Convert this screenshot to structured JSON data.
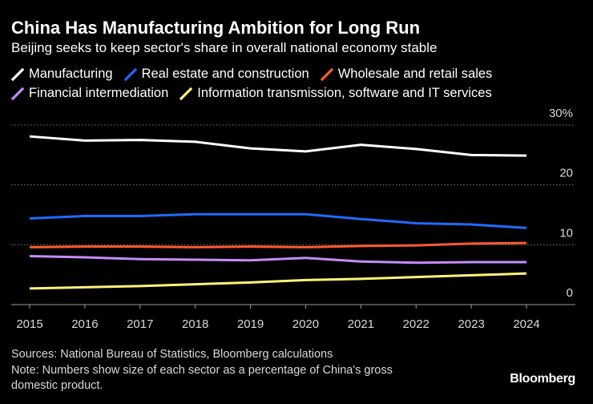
{
  "title": "China Has Manufacturing Ambition for Long Run",
  "subtitle": "Beijing seeks to keep sector's share in overall national economy stable",
  "sources": "Sources: National Bureau of Statistics, Bloomberg calculations",
  "note_line1": "Note: Numbers show size of each sector as a percentage of China's gross",
  "note_line2": "domestic product.",
  "brand": "Bloomberg",
  "chart_data": {
    "type": "line",
    "title": "China Has Manufacturing Ambition for Long Run",
    "subtitle": "Beijing seeks to keep sector's share in overall national economy stable",
    "xlabel": "",
    "ylabel": "",
    "x": [
      "2015",
      "2016",
      "2017",
      "2018",
      "2019",
      "2020",
      "2021",
      "2022",
      "2023",
      "2024"
    ],
    "ylim": [
      0,
      30
    ],
    "yticks": [
      0,
      10,
      20,
      30
    ],
    "ytick_labels": [
      "0",
      "10",
      "20",
      "30%"
    ],
    "grid": true,
    "legend_position": "top-left",
    "series": [
      {
        "name": "Manufacturing",
        "color": "#ffffff",
        "values": [
          28.1,
          27.4,
          27.5,
          27.2,
          26.1,
          25.6,
          26.7,
          26.0,
          25.0,
          24.9
        ]
      },
      {
        "name": "Real estate and construction",
        "color": "#1f6bff",
        "values": [
          14.4,
          14.8,
          14.8,
          15.1,
          15.1,
          15.1,
          14.3,
          13.6,
          13.4,
          12.8
        ]
      },
      {
        "name": "Wholesale and retail sales",
        "color": "#ff5a2e",
        "values": [
          9.6,
          9.7,
          9.7,
          9.6,
          9.7,
          9.6,
          9.8,
          9.9,
          10.2,
          10.3
        ]
      },
      {
        "name": "Financial intermediation",
        "color": "#c58bff",
        "values": [
          8.1,
          7.9,
          7.6,
          7.5,
          7.4,
          7.8,
          7.2,
          7.0,
          7.1,
          7.1
        ]
      },
      {
        "name": "Information transmission, software and IT services",
        "color": "#fff27a",
        "values": [
          2.7,
          2.9,
          3.1,
          3.4,
          3.7,
          4.1,
          4.3,
          4.6,
          4.9,
          5.2
        ]
      }
    ]
  }
}
